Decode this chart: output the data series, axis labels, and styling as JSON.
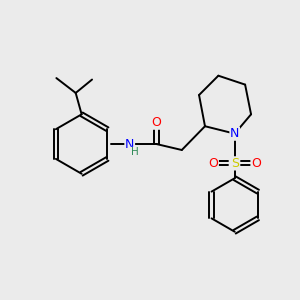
{
  "background_color": "#ebebeb",
  "bond_color": "#000000",
  "atom_colors": {
    "O": "#ff0000",
    "N": "#0000ff",
    "S": "#cccc00",
    "H": "#2e8b57",
    "C": "#000000"
  },
  "figsize": [
    3.0,
    3.0
  ],
  "dpi": 100
}
